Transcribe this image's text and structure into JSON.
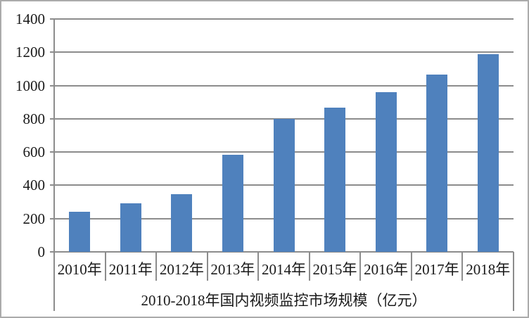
{
  "chart_data": {
    "type": "bar",
    "title": "2010-2018年国内视频监控市场规模（亿元）",
    "xlabel": "",
    "ylabel": "",
    "categories": [
      "2010年",
      "2011年",
      "2012年",
      "2013年",
      "2014年",
      "2015年",
      "2016年",
      "2017年",
      "2018年"
    ],
    "values": [
      240,
      290,
      345,
      585,
      800,
      865,
      960,
      1065,
      1190
    ],
    "ylim": [
      0,
      1400
    ],
    "yticks": [
      0,
      200,
      400,
      600,
      800,
      1000,
      1200,
      1400
    ],
    "grid": true,
    "legend_position": "none",
    "bar_color": "#4F81BD",
    "grid_color": "#8C8C8C",
    "frame_border_color": "#ABABAB",
    "text_color": "#1A1A1A"
  }
}
